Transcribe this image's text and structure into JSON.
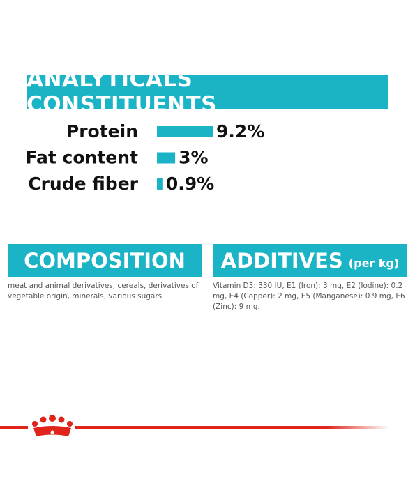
{
  "header": {
    "title": "ANALYTICALS CONSTITUENTS"
  },
  "chart_data": {
    "type": "bar",
    "orientation": "horizontal",
    "categories": [
      "Protein",
      "Fat content",
      "Crude fiber"
    ],
    "values": [
      9.2,
      3,
      0.9
    ],
    "value_labels": [
      "9.2%",
      "3%",
      "0.9%"
    ],
    "color": "#1bb3c6"
  },
  "composition": {
    "title": "COMPOSITION",
    "text": "meat and animal derivatives, cereals, derivatives of vegetable origin, minerals, various sugars"
  },
  "additives": {
    "title": "ADDITIVES",
    "unit": "(per kg)",
    "text": "Vitamin D3: 330 IU, E1 (Iron): 3 mg, E2 (Iodine): 0.2 mg, E4 (Copper): 2 mg, E5 (Manganese): 0.9 mg, E6 (Zinc): 9 mg."
  }
}
